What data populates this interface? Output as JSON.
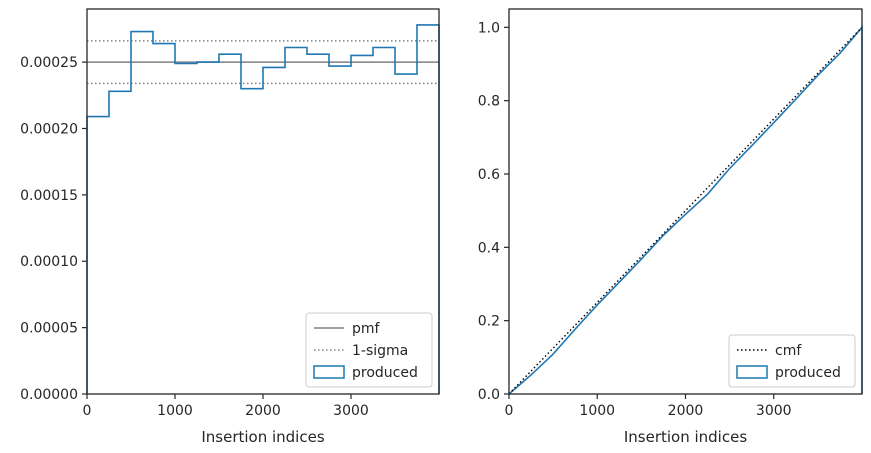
{
  "chart_data": [
    {
      "type": "histogram",
      "xlabel": "Insertion indices",
      "ylabel": "",
      "xlim": [
        0,
        4000
      ],
      "ylim": [
        0,
        0.00029
      ],
      "xticks": [
        0,
        1000,
        2000,
        3000
      ],
      "yticks": [
        0.0,
        5e-05,
        0.0001,
        0.00015,
        0.0002,
        0.00025
      ],
      "xtick_labels": [
        "0",
        "1000",
        "2000",
        "3000"
      ],
      "ytick_labels": [
        "0.00000",
        "0.00005",
        "0.00010",
        "0.00015",
        "0.00020",
        "0.00025"
      ],
      "grid": false,
      "legend_position": "bottom-right",
      "pmf": 0.00025,
      "sigma_band": [
        0.000234,
        0.000266
      ],
      "bin_edges": [
        0,
        250,
        500,
        750,
        1000,
        1250,
        1500,
        1750,
        2000,
        2250,
        2500,
        2750,
        3000,
        3250,
        3500,
        3750,
        4000
      ],
      "values": [
        0.000209,
        0.000228,
        0.000273,
        0.000264,
        0.000249,
        0.00025,
        0.000256,
        0.00023,
        0.000246,
        0.000261,
        0.000256,
        0.000247,
        0.000255,
        0.000261,
        0.000241,
        0.000278
      ],
      "legend": [
        {
          "label": "pmf",
          "style": "solid",
          "color": "#808080"
        },
        {
          "label": "1-sigma",
          "style": "dotted",
          "color": "#808080"
        },
        {
          "label": "produced",
          "style": "patch",
          "color": "#1f77b4"
        }
      ]
    },
    {
      "type": "line",
      "xlabel": "Insertion indices",
      "ylabel": "",
      "xlim": [
        0,
        4000
      ],
      "ylim": [
        0,
        1.05
      ],
      "xticks": [
        0,
        1000,
        2000,
        3000
      ],
      "yticks": [
        0,
        0.2,
        0.4,
        0.6,
        0.8,
        1.0
      ],
      "xtick_labels": [
        "0",
        "1000",
        "2000",
        "3000"
      ],
      "ytick_labels": [
        "0.0",
        "0.2",
        "0.4",
        "0.6",
        "0.8",
        "1.0"
      ],
      "grid": false,
      "legend_position": "bottom-right",
      "cmf": {
        "x": [
          0,
          4000
        ],
        "y": [
          0,
          1
        ]
      },
      "produced": {
        "x": [
          0,
          250,
          500,
          750,
          1000,
          1250,
          1500,
          1750,
          2000,
          2250,
          2500,
          2750,
          3000,
          3250,
          3500,
          3750,
          4000
        ],
        "y": [
          0,
          0.052,
          0.109,
          0.177,
          0.243,
          0.305,
          0.368,
          0.433,
          0.49,
          0.545,
          0.615,
          0.677,
          0.74,
          0.804,
          0.869,
          0.929,
          1.0
        ]
      },
      "legend": [
        {
          "label": "cmf",
          "style": "dotted",
          "color": "#000000"
        },
        {
          "label": "produced",
          "style": "patch",
          "color": "#1f77b4"
        }
      ]
    }
  ]
}
